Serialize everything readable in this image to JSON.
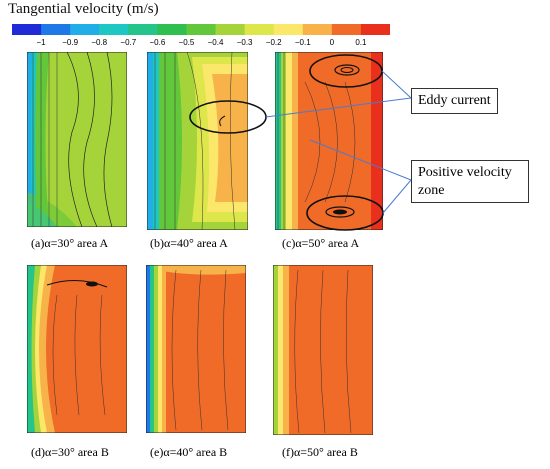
{
  "colorbar": {
    "title": "Tangential velocity (m/s)",
    "ticks": [
      "−1",
      "−0.9",
      "−0.8",
      "−0.7",
      "−0.6",
      "−0.5",
      "−0.4",
      "−0.3",
      "−0.2",
      "−0.1",
      "0",
      "0.1"
    ],
    "colors": [
      "#1e2bd6",
      "#1f78e8",
      "#21aee8",
      "#1fc7c2",
      "#24c48a",
      "#2fbf4e",
      "#62c73a",
      "#a4d43a",
      "#dde64a",
      "#fbe76a",
      "#f7b34a",
      "#f06a28",
      "#e8301c"
    ]
  },
  "panels": [
    {
      "caption": "(a)α=30°  area A"
    },
    {
      "caption": "(b)α=40°  area A"
    },
    {
      "caption": "(c)α=50°  area A"
    },
    {
      "caption": "(d)α=30°  area B"
    },
    {
      "caption": "(e)α=40°  area B"
    },
    {
      "caption": "(f)α=50°  area B"
    }
  ],
  "callouts": {
    "eddy": "Eddy current",
    "positive": "Positive velocity zone"
  }
}
